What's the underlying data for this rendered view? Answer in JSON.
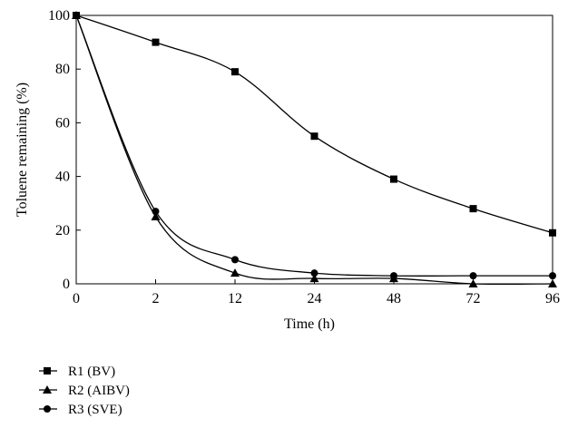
{
  "chart_data": {
    "type": "line",
    "xlabel": "Time (h)",
    "ylabel": "Toluene remaining (%)",
    "categories": [
      "0",
      "2",
      "12",
      "24",
      "48",
      "72",
      "96"
    ],
    "ylim": [
      0,
      100
    ],
    "yticks": [
      "0",
      "20",
      "40",
      "60",
      "80",
      "100"
    ],
    "grid": false,
    "legend_position": "bottom-left",
    "series": [
      {
        "name": "R1 (BV)",
        "marker": "square",
        "values": [
          100,
          90,
          79,
          55,
          39,
          28,
          19
        ]
      },
      {
        "name": "R2 (AIBV)",
        "marker": "triangle",
        "values": [
          100,
          25,
          4,
          2,
          2,
          0,
          0
        ]
      },
      {
        "name": "R3 (SVE)",
        "marker": "circle",
        "values": [
          100,
          27,
          9,
          4,
          3,
          3,
          3
        ]
      }
    ]
  }
}
